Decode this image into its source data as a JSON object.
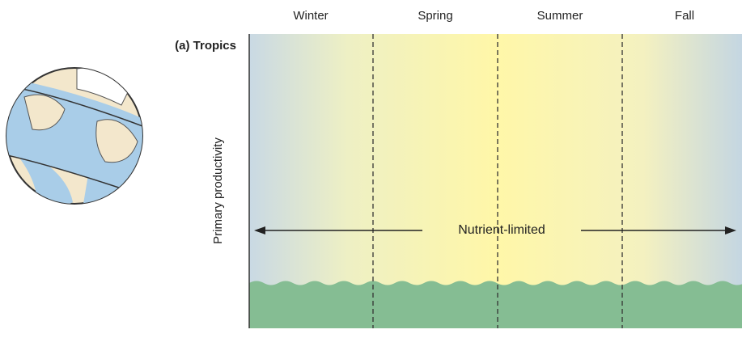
{
  "panel": {
    "label": "(a) Tropics",
    "seasons": [
      "Winter",
      "Spring",
      "Summer",
      "Fall"
    ],
    "y_axis_label": "Primary productivity",
    "annotation": "Nutrient-limited"
  }
}
